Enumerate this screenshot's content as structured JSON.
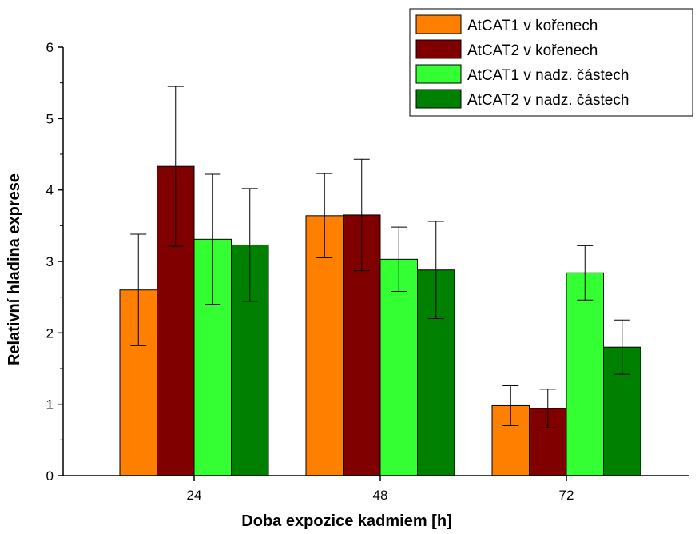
{
  "chart_data": {
    "type": "bar",
    "title": "",
    "xlabel": "Doba expozice kadmiem [h]",
    "ylabel": "Relativní hladina exprese",
    "categories": [
      "24",
      "48",
      "72"
    ],
    "ylim": [
      0,
      6
    ],
    "yticks": [
      "0",
      "1",
      "2",
      "3",
      "4",
      "5",
      "6"
    ],
    "grid": false,
    "legend_position": "top-right",
    "error_bars": true,
    "series": [
      {
        "name": "AtCAT1 v kořenech",
        "color": "#FF8000",
        "values": [
          2.6,
          3.64,
          0.98
        ],
        "errors": [
          0.78,
          0.59,
          0.28
        ]
      },
      {
        "name": "AtCAT2 v kořenech",
        "color": "#800000",
        "values": [
          4.33,
          3.65,
          0.94
        ],
        "errors": [
          1.12,
          0.78,
          0.27
        ]
      },
      {
        "name": "AtCAT1 v nadz. částech",
        "color": "#33FF33",
        "values": [
          3.31,
          3.03,
          2.84
        ],
        "errors": [
          0.91,
          0.45,
          0.38
        ]
      },
      {
        "name": "AtCAT2 v nadz. částech",
        "color": "#008000",
        "values": [
          3.23,
          2.88,
          1.8
        ],
        "errors": [
          0.79,
          0.68,
          0.38
        ]
      }
    ]
  }
}
